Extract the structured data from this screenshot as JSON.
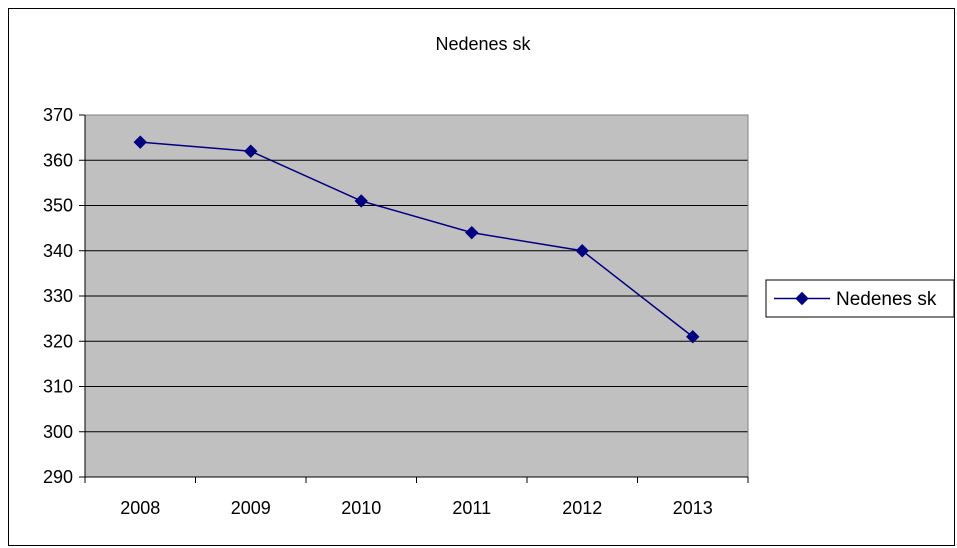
{
  "chart_data": {
    "type": "line",
    "title": "Nedenes sk",
    "xlabel": "",
    "ylabel": "",
    "categories": [
      "2008",
      "2009",
      "2010",
      "2011",
      "2012",
      "2013"
    ],
    "series": [
      {
        "name": "Nedenes sk",
        "values": [
          364,
          362,
          351,
          344,
          340,
          321
        ],
        "color": "#000080",
        "marker": "diamond"
      }
    ],
    "ylim": [
      290,
      370
    ],
    "yticks": [
      370,
      360,
      350,
      340,
      330,
      320,
      310,
      300,
      290
    ],
    "grid": true,
    "plot_background": "#c0c0c0",
    "legend_position": "right"
  }
}
